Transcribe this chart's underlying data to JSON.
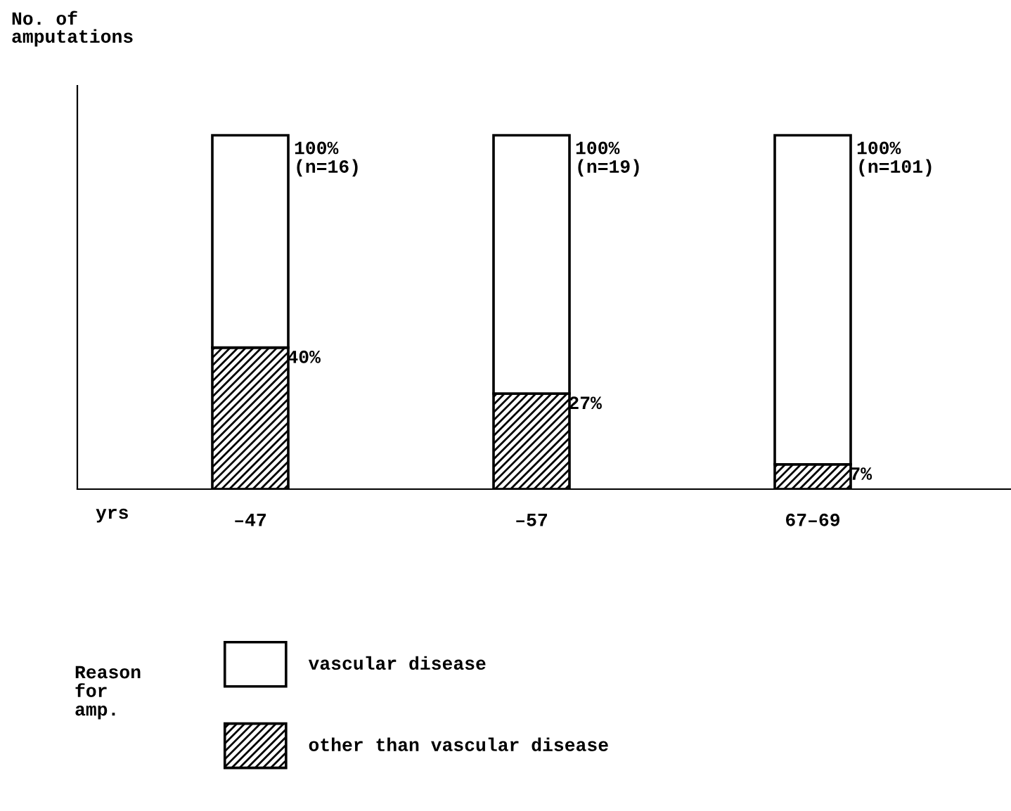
{
  "chart_data": {
    "type": "bar",
    "stacked": true,
    "ylabel": "No. of\namputations",
    "xlabel": "yrs",
    "legend_title": "Reason\nfor\namp.",
    "categories": [
      "–47",
      "–57",
      "67–69"
    ],
    "series": [
      {
        "name": "other than vascular disease",
        "color": "#000000",
        "values": [
          40,
          27,
          7
        ],
        "value_labels": [
          "40%",
          "27%",
          "7%"
        ]
      },
      {
        "name": "vascular disease",
        "color": "#ffffff",
        "values": [
          60,
          73,
          93
        ]
      }
    ],
    "totals": [
      "100%\n(n=16)",
      "100%\n(n=19)",
      "100%\n(n=101)"
    ],
    "legend": "bottom",
    "grid": false
  }
}
